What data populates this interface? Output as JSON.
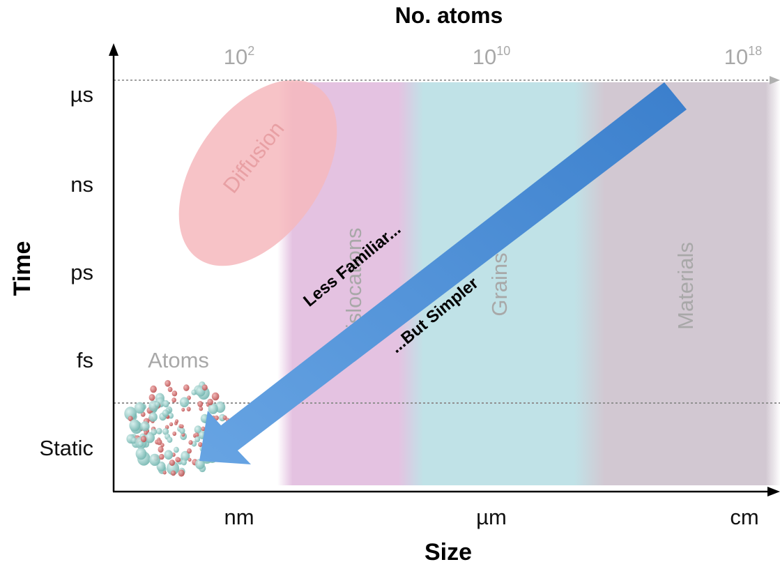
{
  "top_axis": {
    "title": "No. atoms",
    "ticks": [
      {
        "base": "10",
        "exp": "2"
      },
      {
        "base": "10",
        "exp": "10"
      },
      {
        "base": "10",
        "exp": "18"
      }
    ]
  },
  "y_axis": {
    "title": "Time",
    "ticks": [
      "µs",
      "ns",
      "ps",
      "fs",
      "Static"
    ]
  },
  "x_axis": {
    "title": "Size",
    "ticks": [
      "nm",
      "µm",
      "cm"
    ]
  },
  "regions": {
    "diffusion": "Diffusion",
    "atoms": "Atoms",
    "dislocations": "Dislocations",
    "grains": "Grains",
    "materials": "Materials"
  },
  "arrow": {
    "upper_label": "Less Familiar...",
    "lower_label": "...But Simpler"
  },
  "colors": {
    "dislocations": "#e3c0e0",
    "grains": "#bfe2e6",
    "materials": "#d2c8d2",
    "diffusion": "#f6b9bd",
    "arrow": "#4b8fd6",
    "region_label": "#a8a8a8"
  }
}
